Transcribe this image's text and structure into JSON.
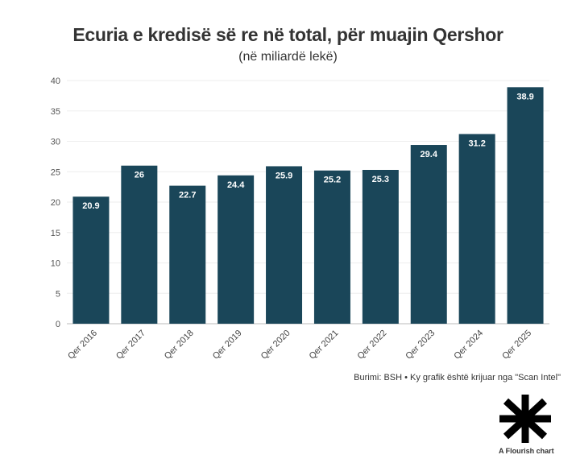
{
  "chart_data": {
    "type": "bar",
    "title": "Ecuria e kredisë së re në total, për muajin Qershor",
    "subtitle": "(në miliardë lekë)",
    "categories": [
      "Qer 2016",
      "Qer 2017",
      "Qer 2018",
      "Qer 2019",
      "Qer 2020",
      "Qer 2021",
      "Qer 2022",
      "Qer 2023",
      "Qer 2024",
      "Qer 2025"
    ],
    "values": [
      20.9,
      26,
      22.7,
      24.4,
      25.9,
      25.2,
      25.3,
      29.4,
      31.2,
      38.9
    ],
    "value_labels": [
      "20.9",
      "26",
      "22.7",
      "24.4",
      "25.9",
      "25.2",
      "25.3",
      "29.4",
      "31.2",
      "38.9"
    ],
    "yticks": [
      "0",
      "5",
      "10",
      "15",
      "20",
      "25",
      "30",
      "35",
      "40"
    ],
    "ylim": [
      0,
      40
    ],
    "xlabel": "",
    "ylabel": "",
    "grid": true,
    "bar_color": "#1a4659",
    "label_color": "#ffffff"
  },
  "source": "Burimi: BSH • Ky grafik është krijuar nga \"Scan Intel\"",
  "branding": {
    "label": "A Flourish chart",
    "icon": "flourish-asterisk-icon"
  }
}
